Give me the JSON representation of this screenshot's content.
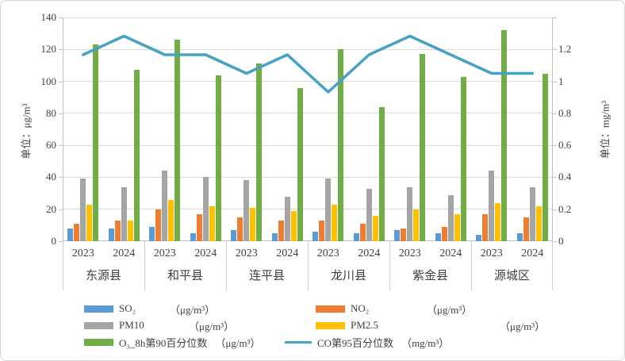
{
  "chart_data": {
    "type": "bar",
    "combo": "clustered bars + line on secondary axis",
    "title": "",
    "counties": [
      "东源县",
      "和平县",
      "连平县",
      "龙川县",
      "紫金县",
      "源城区"
    ],
    "years": [
      "2023",
      "2024"
    ],
    "categories": [
      "东源县 2023",
      "东源县 2024",
      "和平县 2023",
      "和平县 2024",
      "连平县 2023",
      "连平县 2024",
      "龙川县 2023",
      "龙川县 2024",
      "紫金县 2023",
      "紫金县 2024",
      "源城区 2023",
      "源城区 2024"
    ],
    "series": [
      {
        "name": "SO₂",
        "unit": "（μg/m³）",
        "type": "bar",
        "color": "#5B9BD5",
        "axis": "left",
        "values": [
          8,
          8,
          9,
          5,
          7,
          5,
          6,
          5,
          7,
          5,
          4,
          5
        ]
      },
      {
        "name": "NO₂",
        "unit": "（μg/m³）",
        "type": "bar",
        "color": "#ED7D31",
        "axis": "left",
        "values": [
          11,
          13,
          20,
          17,
          15,
          13,
          13,
          11,
          8,
          9,
          17,
          15
        ]
      },
      {
        "name": "PM10",
        "unit": "（μg/m³）",
        "type": "bar",
        "color": "#A5A5A5",
        "axis": "left",
        "values": [
          39,
          34,
          44,
          40,
          38,
          28,
          39,
          33,
          34,
          29,
          44,
          34
        ]
      },
      {
        "name": "PM2.5",
        "unit": "（μg/m³）",
        "type": "bar",
        "color": "#FFC000",
        "axis": "left",
        "values": [
          23,
          13,
          26,
          22,
          21,
          19,
          23,
          16,
          20,
          17,
          24,
          22
        ]
      },
      {
        "name": "O₃_8h第90百分位数",
        "unit": "（μg/m³）",
        "type": "bar",
        "color": "#70AD47",
        "axis": "left",
        "values": [
          123,
          107,
          126,
          104,
          111,
          96,
          120,
          84,
          117,
          103,
          132,
          105
        ]
      },
      {
        "name": "CO第95百分位数",
        "unit": "（mg/m³）",
        "type": "line",
        "color": "#45A2C2",
        "axis": "right",
        "values": [
          1.0,
          1.1,
          1.0,
          1.0,
          0.9,
          1.0,
          0.8,
          1.0,
          1.1,
          1.0,
          0.9,
          0.9
        ]
      }
    ],
    "left_axis": {
      "title": "单位：μg/m³",
      "ticks": [
        0,
        20,
        40,
        60,
        80,
        100,
        120,
        140
      ],
      "min": 0,
      "max": 140
    },
    "right_axis": {
      "title": "单位：mg/m³",
      "ticks": [
        "0",
        "0.2",
        "0.4",
        "0.6",
        "0.8",
        "1",
        "1.2"
      ],
      "min": 0,
      "max": 1.2
    },
    "grid": true,
    "legend_position": "bottom"
  },
  "colors": {
    "so2": "#5B9BD5",
    "no2": "#ED7D31",
    "pm10": "#A5A5A5",
    "pm25": "#FFC000",
    "o3": "#70AD47",
    "co_line": "#45A2C2",
    "gridline": "#d9d9d9",
    "axis_line": "#bfbfbf",
    "text": "#3f3f3f"
  }
}
